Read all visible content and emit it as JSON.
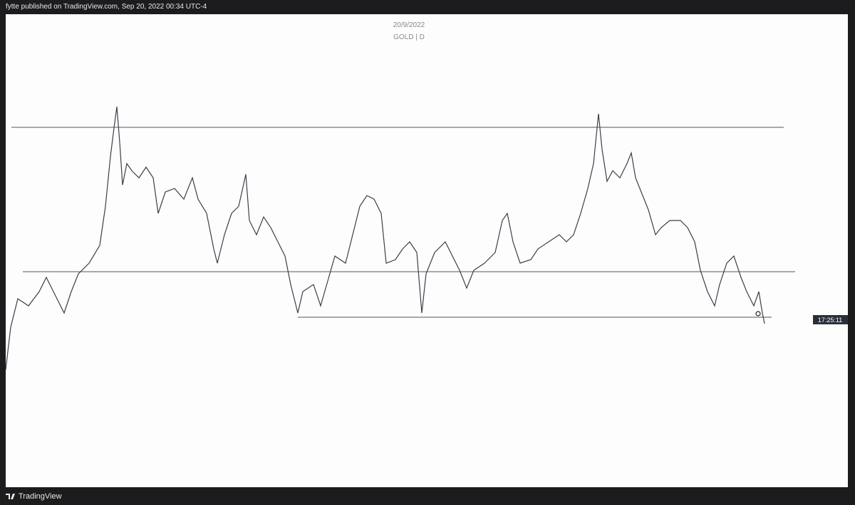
{
  "header": {
    "publisher": "fytte published on TradingView.com, Sep 20, 2022 00:34 UTC-4"
  },
  "chart": {
    "date": "20/9/2022",
    "symbol": "GOLD | D",
    "countdown": "17:25:11"
  },
  "footer": {
    "brand": "TradingView"
  }
}
